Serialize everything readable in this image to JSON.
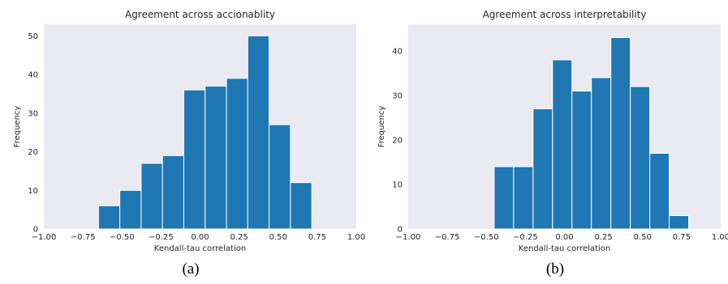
{
  "chart_data": [
    {
      "type": "bar",
      "title": "Agreement across accionablity",
      "xlabel": "Kendall-tau correlation",
      "ylabel": "Frequency",
      "xlim": [
        -1.0,
        1.0
      ],
      "ylim": [
        0,
        53
      ],
      "xticks": [
        "−1.00",
        "−0.75",
        "−0.50",
        "−0.25",
        "0.00",
        "0.25",
        "0.50",
        "0.75",
        "1.00"
      ],
      "yticks": [
        "0",
        "10",
        "20",
        "30",
        "40",
        "50"
      ],
      "bin_start": -0.65,
      "bin_width": 0.1365,
      "values": [
        6,
        10,
        17,
        19,
        36,
        37,
        39,
        50,
        27,
        12
      ],
      "bar_color": "#1f77b4",
      "background": "#eaeaf2",
      "grid": false,
      "caption": "(a)"
    },
    {
      "type": "bar",
      "title": "Agreement across interpretability",
      "xlabel": "Kendall-tau correlation",
      "ylabel": "Frequency",
      "xlim": [
        -1.0,
        1.0
      ],
      "ylim": [
        0,
        46
      ],
      "xticks": [
        "−1.00",
        "−0.75",
        "−0.50",
        "−0.25",
        "0.00",
        "0.25",
        "0.50",
        "0.75",
        "1.00"
      ],
      "yticks": [
        "0",
        "10",
        "20",
        "30",
        "40"
      ],
      "bin_start": -0.45,
      "bin_width": 0.1245,
      "values": [
        14,
        14,
        27,
        38,
        31,
        34,
        43,
        32,
        17,
        3
      ],
      "bar_color": "#1f77b4",
      "background": "#eaeaf2",
      "grid": false,
      "caption": "(b)"
    }
  ]
}
